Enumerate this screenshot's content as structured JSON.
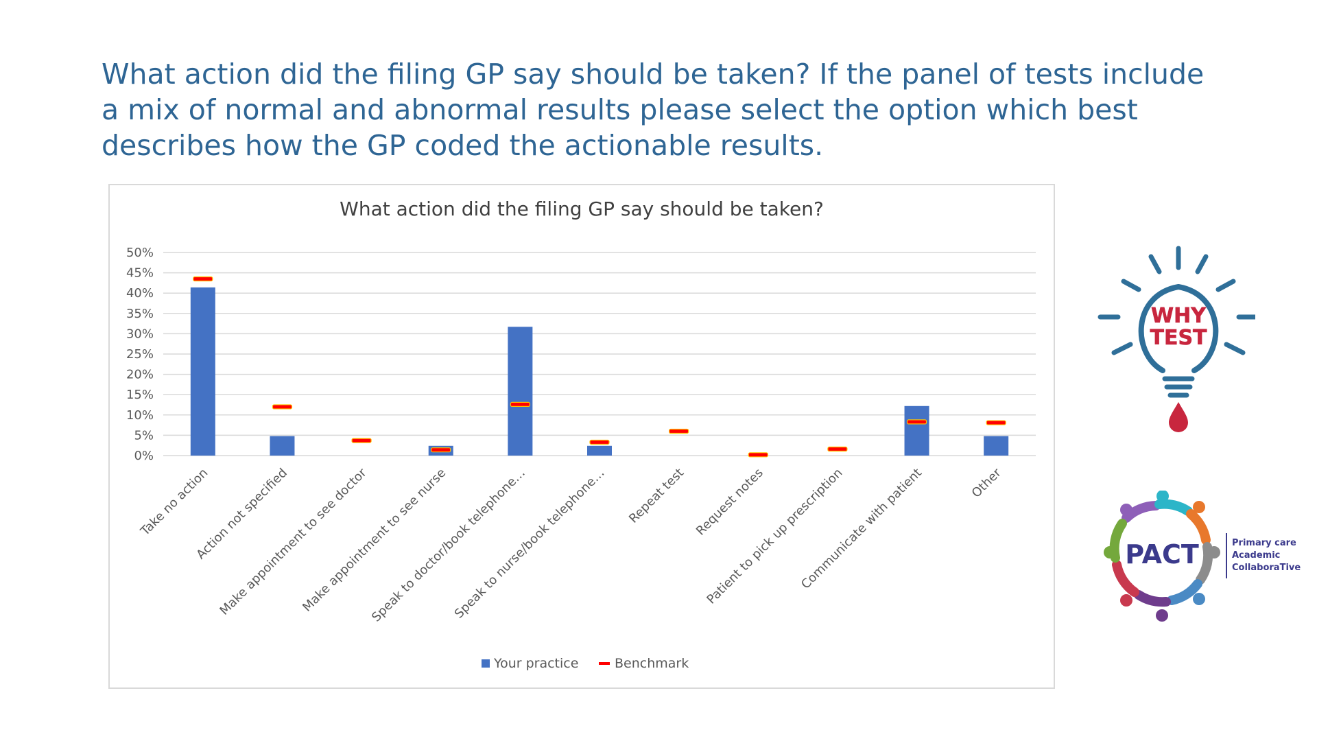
{
  "slide": {
    "title": "What action did the filing GP say should be taken? If the panel of tests include a mix of normal and abnormal results please select the option which best describes how the GP coded the actionable results."
  },
  "colors": {
    "title": "#2E6594",
    "bar": "#4472C4",
    "benchmark": "#FF0000",
    "benchmark_outline": "#FFC000",
    "grid": "#D9D9D9",
    "axis_text": "#595959"
  },
  "chart_data": {
    "type": "bar",
    "title": "What action did the filing GP say should be taken?",
    "categories": [
      "Take no action",
      "Action not specified",
      "Make appointment to see doctor",
      "Make appointment to see nurse",
      "Speak to doctor/book telephone…",
      "Speak to nurse/book telephone…",
      "Repeat test",
      "Request notes",
      "Patient to pick up prescription",
      "Communicate with patient",
      "Other"
    ],
    "series": [
      {
        "name": "Your practice",
        "type": "bar",
        "values": [
          41.4,
          4.8,
          0,
          2.4,
          31.7,
          2.4,
          0,
          0,
          0,
          12.2,
          4.8
        ]
      },
      {
        "name": "Benchmark",
        "type": "marker",
        "values": [
          43.5,
          12.0,
          3.7,
          1.4,
          12.6,
          3.3,
          6.0,
          0.2,
          1.6,
          8.3,
          8.1
        ]
      }
    ],
    "ylim": [
      0,
      50
    ],
    "yticks": [
      "0%",
      "5%",
      "10%",
      "15%",
      "20%",
      "25%",
      "30%",
      "35%",
      "40%",
      "45%",
      "50%"
    ],
    "grid": true,
    "legend_position": "bottom"
  },
  "logos": {
    "why_test": {
      "line1": "WHY",
      "line2": "TEST"
    },
    "pact": {
      "name": "PACT",
      "tagline": [
        "Primary care",
        "Academic",
        "CollaboraTive"
      ]
    }
  }
}
